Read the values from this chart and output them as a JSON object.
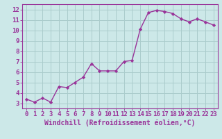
{
  "x": [
    0,
    1,
    2,
    3,
    4,
    5,
    6,
    7,
    8,
    9,
    10,
    11,
    12,
    13,
    14,
    15,
    16,
    17,
    18,
    19,
    20,
    21,
    22,
    23
  ],
  "y": [
    3.4,
    3.1,
    3.5,
    3.1,
    4.6,
    4.5,
    5.0,
    5.5,
    6.8,
    6.1,
    6.1,
    6.1,
    7.0,
    7.1,
    10.1,
    11.7,
    11.9,
    11.8,
    11.6,
    11.1,
    10.8,
    11.1,
    10.8,
    10.5
  ],
  "line_color": "#993399",
  "marker": "D",
  "marker_size": 2.2,
  "bg_color": "#cce8e8",
  "grid_color": "#aacccc",
  "xlabel": "Windchill (Refroidissement éolien,°C)",
  "xlim": [
    -0.5,
    23.5
  ],
  "ylim": [
    2.5,
    12.5
  ],
  "xticks": [
    0,
    1,
    2,
    3,
    4,
    5,
    6,
    7,
    8,
    9,
    10,
    11,
    12,
    13,
    14,
    15,
    16,
    17,
    18,
    19,
    20,
    21,
    22,
    23
  ],
  "yticks": [
    3,
    4,
    5,
    6,
    7,
    8,
    9,
    10,
    11,
    12
  ],
  "xlabel_fontsize": 7,
  "tick_fontsize": 6.5,
  "linewidth": 1.0
}
